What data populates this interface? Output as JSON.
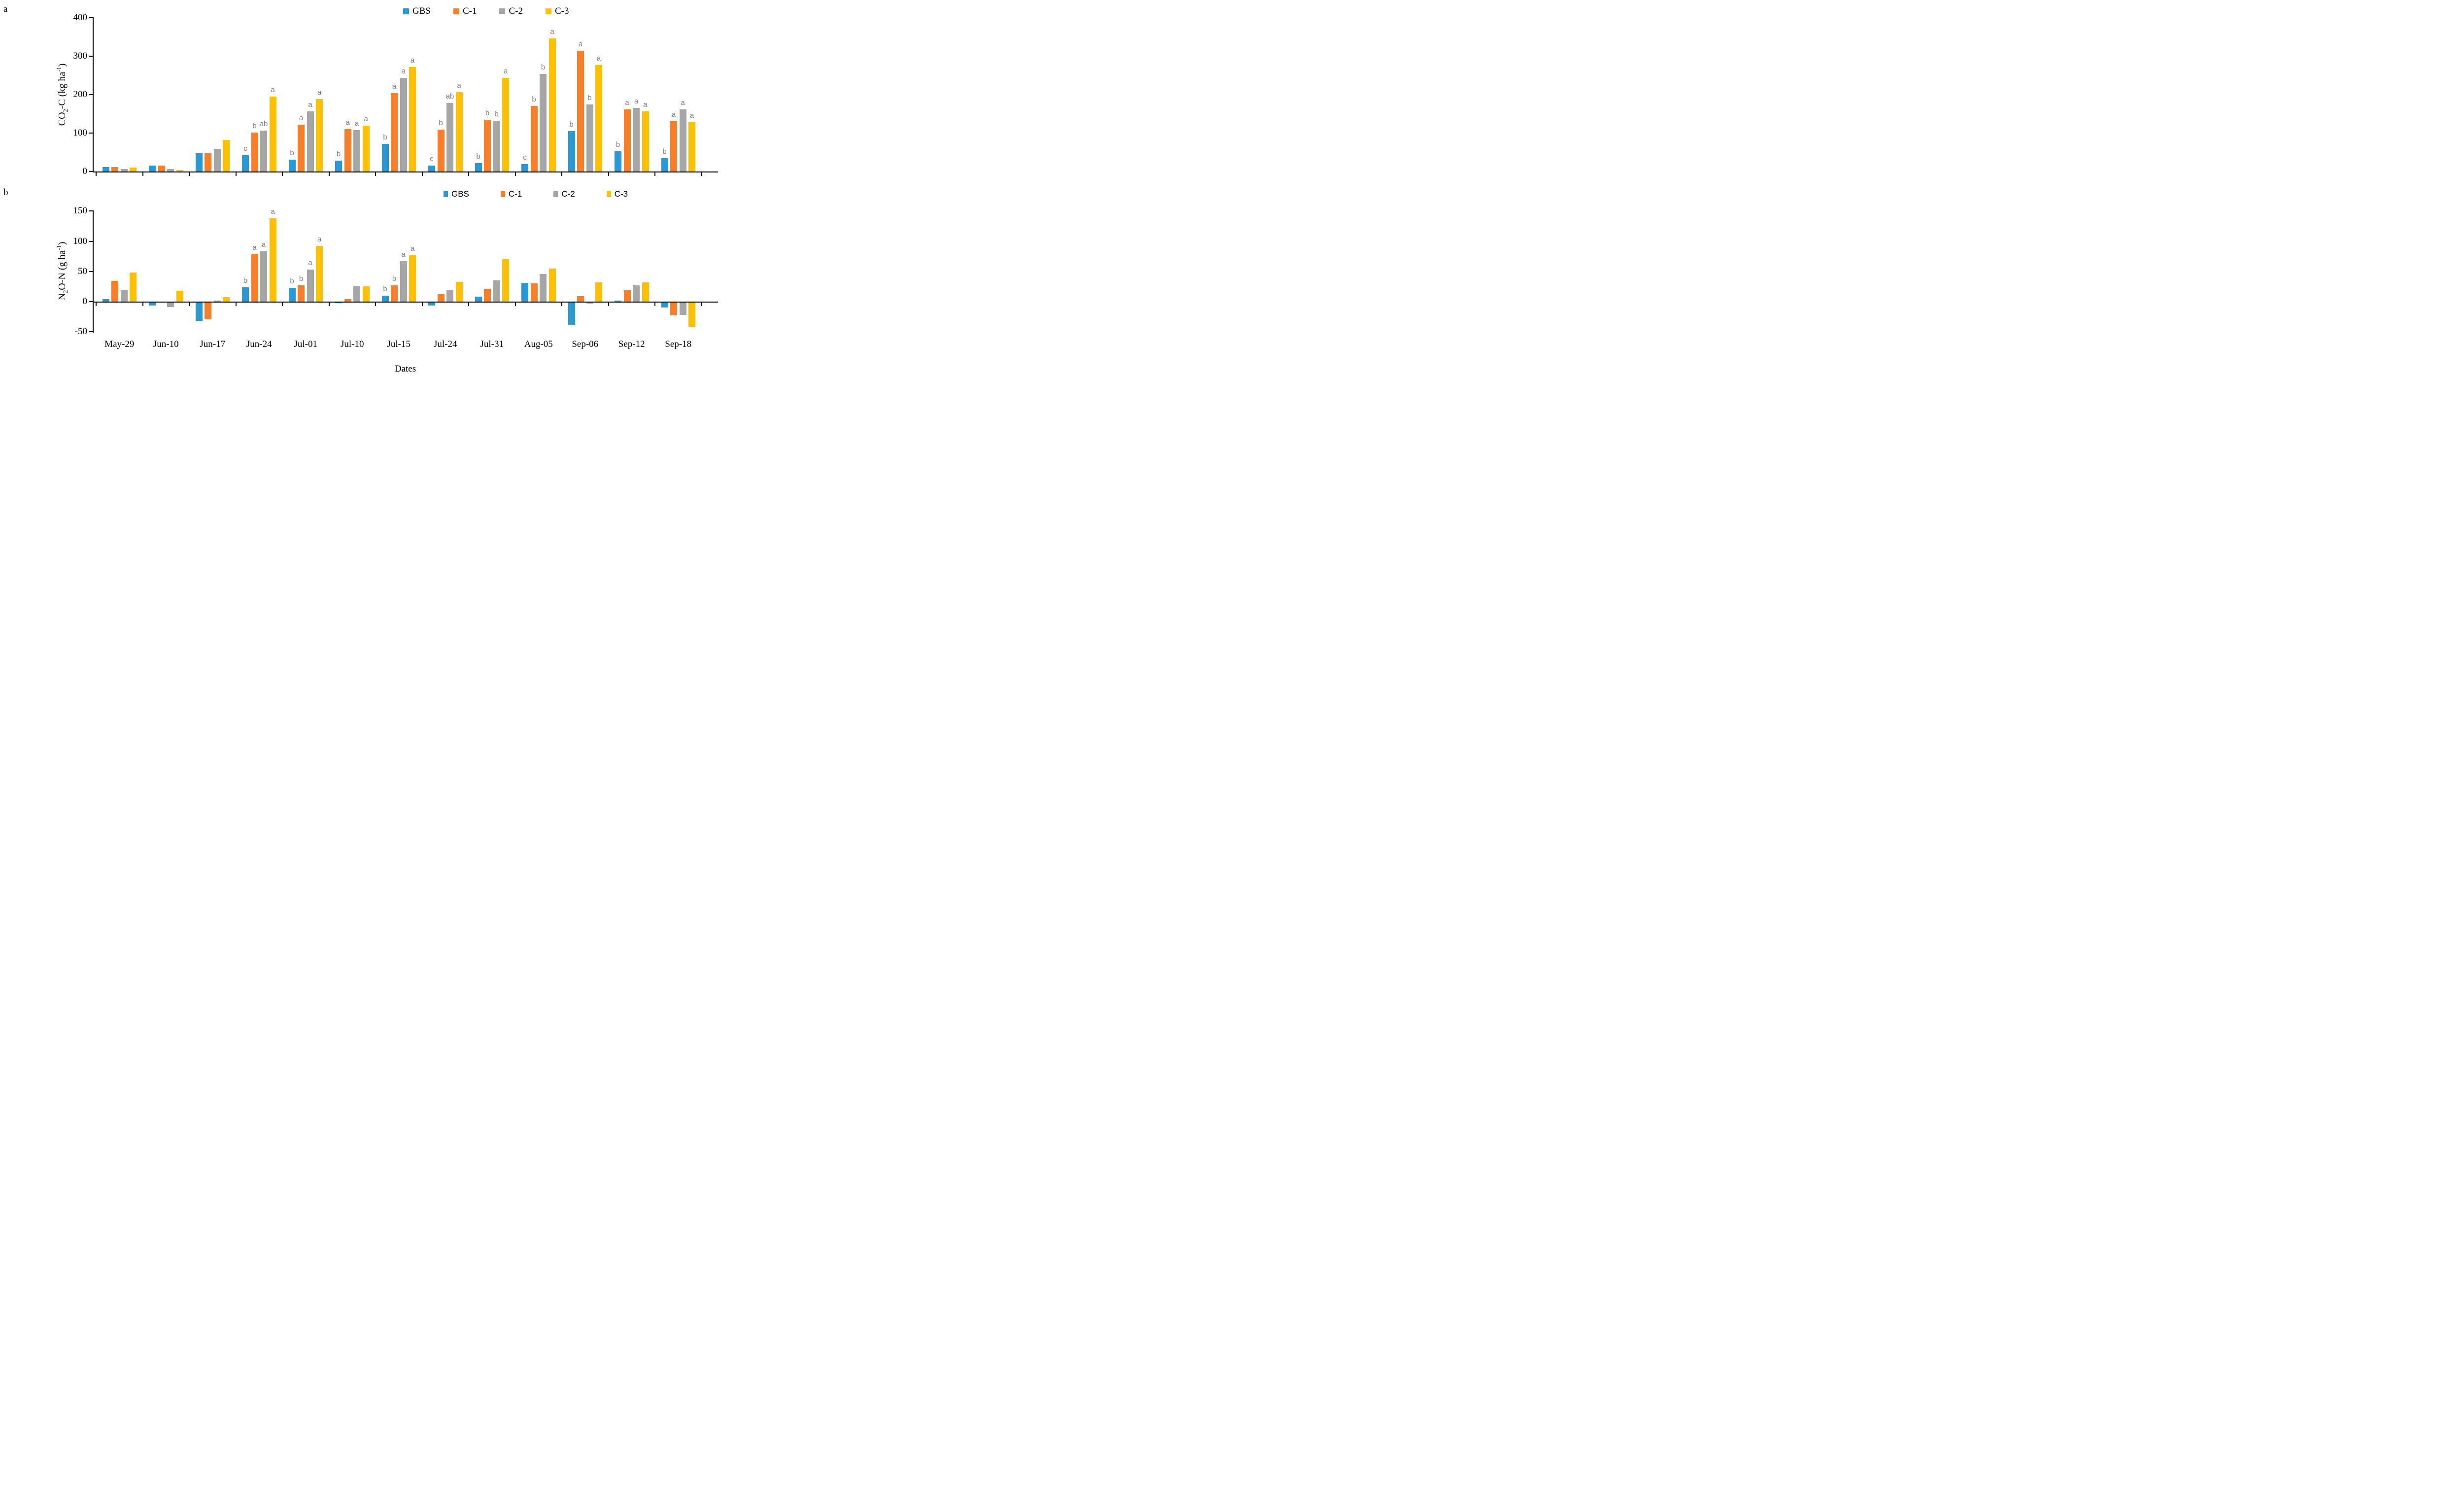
{
  "figure": {
    "background": "#FFFFFF",
    "axis_color": "#000000",
    "sig_letter_color": "#7F7F7F",
    "x_axis_title": "Dates"
  },
  "chart_data": [
    {
      "type": "bar",
      "panel_label": "a",
      "ylabel": "CO2-C (kg ha-1)",
      "ylabel_parts": {
        "pre": "CO",
        "sub": "2",
        "mid": "-C (kg ha",
        "sup": "-1",
        "post": ")"
      },
      "xlabel": "",
      "ylim": [
        0,
        400
      ],
      "yticks": [
        0,
        100,
        200,
        300,
        400
      ],
      "grid": false,
      "legend_position": "top-right-of-center",
      "categories": [
        "May-29",
        "Jun-10",
        "Jun-17",
        "Jun-24",
        "Jul-01",
        "Jul-10",
        "Jul-15",
        "Jul-24",
        "Jul-31",
        "Aug-05",
        "Sep-06",
        "Sep-12",
        "Sep-18"
      ],
      "series": [
        {
          "name": "GBS",
          "color": "#2899D4",
          "values": [
            12,
            15,
            47,
            42,
            31,
            28,
            72,
            15,
            22,
            19,
            105,
            53,
            35
          ]
        },
        {
          "name": "C-1",
          "color": "#F87E28",
          "values": [
            11,
            16,
            47,
            101,
            122,
            110,
            204,
            109,
            134,
            170,
            314,
            162,
            131
          ]
        },
        {
          "name": "C-2",
          "color": "#A6A6A6",
          "values": [
            6,
            7,
            59,
            107,
            157,
            108,
            244,
            178,
            132,
            254,
            174,
            166,
            161
          ]
        },
        {
          "name": "C-3",
          "color": "#FFC000",
          "values": [
            10,
            4,
            82,
            195,
            188,
            119,
            272,
            207,
            244,
            346,
            277,
            156,
            128
          ]
        }
      ],
      "sig_letters": [
        null,
        null,
        null,
        [
          "c",
          "b",
          "ab",
          "a"
        ],
        [
          "b",
          "a",
          "a",
          "a"
        ],
        [
          "b",
          "a",
          "a",
          "a"
        ],
        [
          "b",
          "a",
          "a",
          "a"
        ],
        [
          "c",
          "b",
          "ab",
          "a"
        ],
        [
          "b",
          "b",
          "b",
          "a"
        ],
        [
          "c",
          "b",
          "b",
          "a"
        ],
        [
          "b",
          "a",
          "b",
          "a"
        ],
        [
          "b",
          "a",
          "a",
          "a"
        ],
        [
          "b",
          "a",
          "a",
          "a"
        ]
      ]
    },
    {
      "type": "bar",
      "panel_label": "b",
      "ylabel": "N2O-N (g ha-1)",
      "ylabel_parts": {
        "pre": "N",
        "sub": "2",
        "mid": "O-N (g ha",
        "sup": "-1",
        "post": ")"
      },
      "xlabel": "Dates",
      "ylim": [
        -50,
        150
      ],
      "yticks": [
        -50,
        0,
        50,
        100,
        150
      ],
      "grid": false,
      "legend_position": "top-right-of-center",
      "categories": [
        "May-29",
        "Jun-10",
        "Jun-17",
        "Jun-24",
        "Jul-01",
        "Jul-10",
        "Jul-15",
        "Jul-24",
        "Jul-31",
        "Aug-05",
        "Sep-06",
        "Sep-12",
        "Sep-18"
      ],
      "series": [
        {
          "name": "GBS",
          "color": "#2899D4",
          "values": [
            4,
            -5,
            -30,
            24,
            23,
            -1,
            10,
            -5,
            8,
            31,
            -37,
            2,
            -8
          ]
        },
        {
          "name": "C-1",
          "color": "#F87E28",
          "values": [
            34,
            0,
            -28,
            78,
            27,
            4,
            27,
            12,
            21,
            30,
            9,
            19,
            -21
          ]
        },
        {
          "name": "C-2",
          "color": "#A6A6A6",
          "values": [
            19,
            -7,
            1.5,
            83,
            53,
            26,
            67,
            19,
            35,
            46,
            -2,
            27,
            -20
          ]
        },
        {
          "name": "C-3",
          "color": "#FFC000",
          "values": [
            48,
            18,
            7,
            138,
            92,
            25,
            77,
            33,
            70,
            55,
            32,
            32,
            -41
          ]
        }
      ],
      "sig_letters": [
        null,
        null,
        null,
        [
          "b",
          "a",
          "a",
          "a"
        ],
        [
          "b",
          "b",
          "a",
          "a"
        ],
        null,
        [
          "b",
          "b",
          "a",
          "a"
        ],
        null,
        null,
        null,
        null,
        null,
        null
      ]
    }
  ]
}
